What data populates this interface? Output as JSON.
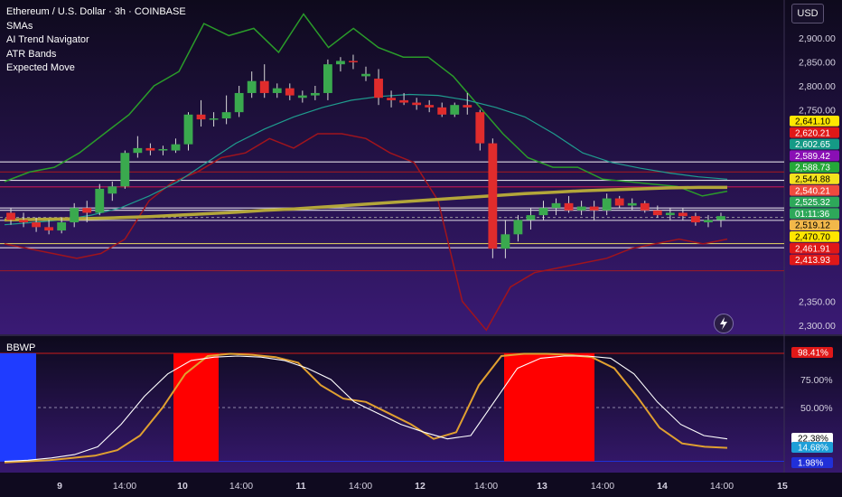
{
  "header": {
    "title": "Ethereum / U.S. Dollar · 3h · COINBASE",
    "indicators": [
      "SMAs",
      "AI Trend Navigator",
      "ATR Bands",
      "Expected Move"
    ]
  },
  "currency_button": "USD",
  "sub_panel": {
    "label": "BBWP"
  },
  "icons": {
    "flash": "lightning-bolt-icon"
  },
  "colors": {
    "background": "#120a26",
    "bull": "#3aa94e",
    "bear": "#e02c2c",
    "sma_long": "#b3a63a",
    "sma_mid": "#1f9c8e",
    "atr_upper": "#2a9c2a",
    "atr_lower": "#a0141d",
    "band_inner": "#e6cf78",
    "bbwp_high": "#ff0000",
    "bbwp_low": "#1f3cff"
  },
  "chart_data": [
    {
      "type": "candlestick",
      "title": "Ethereum / U.S. Dollar · 3h · COINBASE",
      "x_tick_labels": [
        "9",
        "14:00",
        "10",
        "14:00",
        "11",
        "14:00",
        "12",
        "14:00",
        "13",
        "14:00",
        "14",
        "14:00",
        "15"
      ],
      "y_tick_labels": [
        "2,900.00",
        "2,850.00",
        "2,800.00",
        "2,750.00",
        "2,350.00",
        "2,300.00"
      ],
      "ylim": [
        2280,
        2940
      ],
      "candles": [
        {
          "o": 2535,
          "h": 2545,
          "l": 2510,
          "c": 2520
        },
        {
          "o": 2520,
          "h": 2535,
          "l": 2505,
          "c": 2515
        },
        {
          "o": 2515,
          "h": 2525,
          "l": 2495,
          "c": 2505
        },
        {
          "o": 2505,
          "h": 2520,
          "l": 2490,
          "c": 2498
        },
        {
          "o": 2498,
          "h": 2525,
          "l": 2492,
          "c": 2515
        },
        {
          "o": 2515,
          "h": 2555,
          "l": 2505,
          "c": 2545
        },
        {
          "o": 2545,
          "h": 2560,
          "l": 2515,
          "c": 2535
        },
        {
          "o": 2535,
          "h": 2595,
          "l": 2530,
          "c": 2585
        },
        {
          "o": 2575,
          "h": 2600,
          "l": 2560,
          "c": 2590
        },
        {
          "o": 2590,
          "h": 2665,
          "l": 2585,
          "c": 2660
        },
        {
          "o": 2660,
          "h": 2695,
          "l": 2650,
          "c": 2670
        },
        {
          "o": 2670,
          "h": 2680,
          "l": 2655,
          "c": 2665
        },
        {
          "o": 2665,
          "h": 2675,
          "l": 2655,
          "c": 2668
        },
        {
          "o": 2665,
          "h": 2690,
          "l": 2660,
          "c": 2678
        },
        {
          "o": 2678,
          "h": 2745,
          "l": 2665,
          "c": 2740
        },
        {
          "o": 2740,
          "h": 2770,
          "l": 2715,
          "c": 2730
        },
        {
          "o": 2730,
          "h": 2745,
          "l": 2715,
          "c": 2732
        },
        {
          "o": 2732,
          "h": 2780,
          "l": 2720,
          "c": 2745
        },
        {
          "o": 2745,
          "h": 2800,
          "l": 2735,
          "c": 2785
        },
        {
          "o": 2785,
          "h": 2830,
          "l": 2775,
          "c": 2810
        },
        {
          "o": 2810,
          "h": 2845,
          "l": 2775,
          "c": 2785
        },
        {
          "o": 2785,
          "h": 2805,
          "l": 2775,
          "c": 2795
        },
        {
          "o": 2795,
          "h": 2805,
          "l": 2770,
          "c": 2780
        },
        {
          "o": 2775,
          "h": 2790,
          "l": 2765,
          "c": 2780
        },
        {
          "o": 2780,
          "h": 2800,
          "l": 2770,
          "c": 2785
        },
        {
          "o": 2785,
          "h": 2855,
          "l": 2770,
          "c": 2845
        },
        {
          "o": 2845,
          "h": 2860,
          "l": 2830,
          "c": 2852
        },
        {
          "o": 2852,
          "h": 2865,
          "l": 2835,
          "c": 2850
        },
        {
          "o": 2820,
          "h": 2840,
          "l": 2810,
          "c": 2825
        },
        {
          "o": 2815,
          "h": 2835,
          "l": 2760,
          "c": 2775
        },
        {
          "o": 2775,
          "h": 2790,
          "l": 2755,
          "c": 2770
        },
        {
          "o": 2770,
          "h": 2785,
          "l": 2760,
          "c": 2765
        },
        {
          "o": 2765,
          "h": 2775,
          "l": 2750,
          "c": 2760
        },
        {
          "o": 2760,
          "h": 2770,
          "l": 2745,
          "c": 2755
        },
        {
          "o": 2755,
          "h": 2765,
          "l": 2735,
          "c": 2740
        },
        {
          "o": 2740,
          "h": 2765,
          "l": 2735,
          "c": 2760
        },
        {
          "o": 2760,
          "h": 2785,
          "l": 2740,
          "c": 2755
        },
        {
          "o": 2745,
          "h": 2750,
          "l": 2665,
          "c": 2680
        },
        {
          "o": 2680,
          "h": 2690,
          "l": 2440,
          "c": 2460
        },
        {
          "o": 2460,
          "h": 2520,
          "l": 2440,
          "c": 2490
        },
        {
          "o": 2490,
          "h": 2530,
          "l": 2475,
          "c": 2520
        },
        {
          "o": 2520,
          "h": 2545,
          "l": 2500,
          "c": 2530
        },
        {
          "o": 2530,
          "h": 2560,
          "l": 2520,
          "c": 2545
        },
        {
          "o": 2545,
          "h": 2565,
          "l": 2530,
          "c": 2555
        },
        {
          "o": 2555,
          "h": 2570,
          "l": 2535,
          "c": 2540
        },
        {
          "o": 2540,
          "h": 2560,
          "l": 2530,
          "c": 2548
        },
        {
          "o": 2548,
          "h": 2560,
          "l": 2520,
          "c": 2540
        },
        {
          "o": 2540,
          "h": 2575,
          "l": 2530,
          "c": 2565
        },
        {
          "o": 2565,
          "h": 2570,
          "l": 2545,
          "c": 2550
        },
        {
          "o": 2550,
          "h": 2565,
          "l": 2540,
          "c": 2555
        },
        {
          "o": 2555,
          "h": 2560,
          "l": 2535,
          "c": 2540
        },
        {
          "o": 2540,
          "h": 2550,
          "l": 2525,
          "c": 2530
        },
        {
          "o": 2530,
          "h": 2545,
          "l": 2520,
          "c": 2535
        },
        {
          "o": 2535,
          "h": 2545,
          "l": 2520,
          "c": 2528
        },
        {
          "o": 2528,
          "h": 2535,
          "l": 2508,
          "c": 2515
        },
        {
          "o": 2515,
          "h": 2530,
          "l": 2505,
          "c": 2520
        },
        {
          "o": 2520,
          "h": 2535,
          "l": 2505,
          "c": 2528
        }
      ],
      "overlays": {
        "sma_long": [
          2520,
          2521,
          2522,
          2523,
          2525,
          2527,
          2530,
          2533,
          2536,
          2540,
          2543,
          2547,
          2551,
          2555,
          2559,
          2563,
          2567,
          2571,
          2575,
          2578,
          2581,
          2583,
          2585,
          2587,
          2588,
          2588
        ],
        "sma_mid": [
          2510,
          2515,
          2520,
          2530,
          2545,
          2570,
          2600,
          2640,
          2680,
          2710,
          2735,
          2755,
          2770,
          2778,
          2782,
          2780,
          2770,
          2755,
          2735,
          2700,
          2660,
          2640,
          2628,
          2618,
          2610,
          2605
        ],
        "atr_upper": [
          2600,
          2620,
          2630,
          2660,
          2700,
          2740,
          2800,
          2830,
          2930,
          2905,
          2920,
          2870,
          2950,
          2880,
          2920,
          2880,
          2860,
          2860,
          2820,
          2760,
          2700,
          2650,
          2630,
          2630,
          2605,
          2600,
          2595,
          2590,
          2570,
          2580
        ],
        "atr_lower": [
          2470,
          2460,
          2450,
          2440,
          2450,
          2480,
          2560,
          2600,
          2620,
          2650,
          2660,
          2690,
          2670,
          2700,
          2700,
          2690,
          2660,
          2640,
          2560,
          2350,
          2290,
          2380,
          2410,
          2420,
          2430,
          2440,
          2460,
          2470,
          2480,
          2470,
          2480
        ]
      },
      "horizontal_levels": [
        2641.1,
        2620.21,
        2602.65,
        2589.42,
        2588.73,
        2544.88,
        2540.21,
        2525.32,
        2519.12,
        2470.7,
        2461.91,
        2413.93
      ],
      "price_tags": [
        {
          "label": "2,641.10",
          "color": "#ffe600",
          "text": "#000000"
        },
        {
          "label": "2,620.21",
          "color": "#e01818",
          "text": "#ffffff"
        },
        {
          "label": "2,602.65",
          "color": "#159a86",
          "text": "#ffffff"
        },
        {
          "label": "2,589.42",
          "color": "#8a0fb5",
          "text": "#ffffff"
        },
        {
          "label": "2,588.73",
          "color": "#24a838",
          "text": "#ffffff"
        },
        {
          "label": "2,544.88",
          "color": "#f4e21e",
          "text": "#000000"
        },
        {
          "label": "2,540.21",
          "color": "#f04a3e",
          "text": "#ffffff"
        },
        {
          "label": "2,525.32",
          "color": "#2ea85a",
          "text": "#ffffff"
        },
        {
          "label": "01:11:36",
          "color": "#2ea85a",
          "text": "#ffffff"
        },
        {
          "label": "2,519.12",
          "color": "#f2b84a",
          "text": "#000000"
        },
        {
          "label": "2,470.70",
          "color": "#ffe600",
          "text": "#000000"
        },
        {
          "label": "2,461.91",
          "color": "#e01818",
          "text": "#ffffff"
        },
        {
          "label": "2,413.93",
          "color": "#e01818",
          "text": "#ffffff"
        }
      ]
    },
    {
      "type": "line",
      "title": "BBWP",
      "y_tick_labels": [
        "75.00%",
        "50.00%"
      ],
      "ylim": [
        0,
        100
      ],
      "series": [
        {
          "values": [
            1,
            2,
            3,
            5,
            7,
            12,
            25,
            50,
            80,
            96,
            98,
            97,
            95,
            90,
            70,
            58,
            55,
            45,
            35,
            22,
            28,
            70,
            96,
            98,
            98,
            97,
            95,
            85,
            60,
            32,
            18,
            15,
            14
          ]
        },
        {
          "values": [
            2,
            3,
            5,
            8,
            15,
            35,
            60,
            80,
            92,
            95,
            96,
            95,
            92,
            85,
            75,
            55,
            45,
            35,
            28,
            22,
            25,
            55,
            85,
            94,
            96,
            96,
            94,
            80,
            55,
            35,
            25,
            22
          ]
        }
      ],
      "value_tags": [
        {
          "label": "98.41%",
          "color": "#e01818",
          "text": "#ffffff"
        },
        {
          "label": "22.38%",
          "color": "#ffffff",
          "text": "#000000"
        },
        {
          "label": "14.68%",
          "color": "#1e9fd8",
          "text": "#ffffff"
        },
        {
          "label": "1.98%",
          "color": "#2030d8",
          "text": "#ffffff"
        }
      ]
    }
  ]
}
